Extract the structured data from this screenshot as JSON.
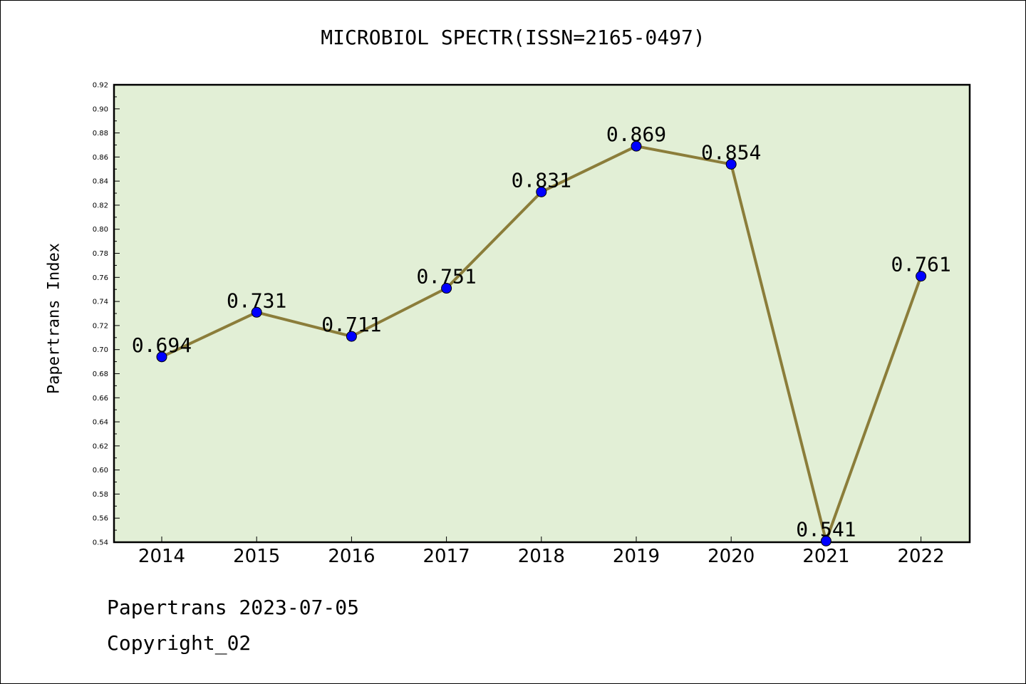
{
  "chart_data": {
    "type": "line",
    "title": "MICROBIOL SPECTR(ISSN=2165-0497)",
    "xlabel": "",
    "ylabel": "Papertrans Index",
    "categories": [
      "2014",
      "2015",
      "2016",
      "2017",
      "2018",
      "2019",
      "2020",
      "2021",
      "2022"
    ],
    "series": [
      {
        "values": [
          0.694,
          0.731,
          0.711,
          0.751,
          0.831,
          0.869,
          0.854,
          0.541,
          0.761
        ],
        "data_labels": [
          "0.694",
          "0.731",
          "0.711",
          "0.751",
          "0.831",
          "0.869",
          "0.854",
          "0.541",
          "0.761"
        ]
      }
    ],
    "ylim": [
      0.54,
      0.92
    ],
    "yticks": [
      "0.54",
      "0.56",
      "0.58",
      "0.60",
      "0.62",
      "0.64",
      "0.66",
      "0.68",
      "0.70",
      "0.72",
      "0.74",
      "0.76",
      "0.78",
      "0.80",
      "0.82",
      "0.84",
      "0.86",
      "0.88",
      "0.90",
      "0.92"
    ],
    "grid": false,
    "legend": "none",
    "colors": {
      "plot_background": "#e2efd6",
      "line": "#8b7d3a",
      "marker": "#0000ff"
    }
  },
  "footer": {
    "date": "Papertrans 2023-07-05",
    "copyright": "Copyright_02"
  }
}
